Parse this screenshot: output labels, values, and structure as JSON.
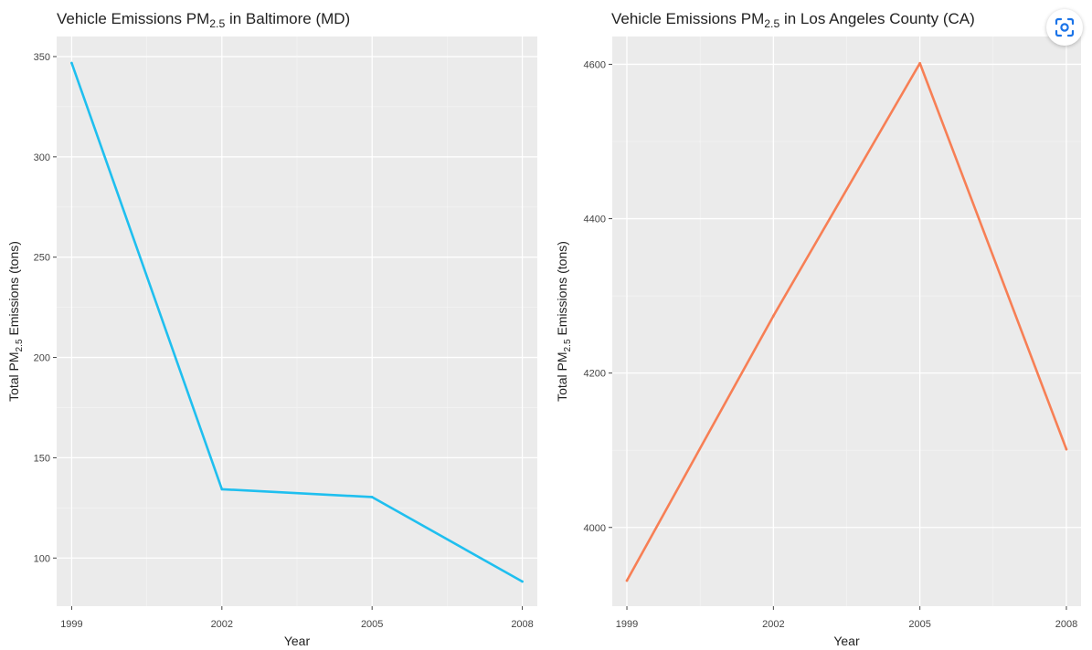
{
  "chart_data": [
    {
      "type": "line",
      "title": {
        "main": "Vehicle Emissions PM",
        "sub": "2.5",
        "rest": " in Baltimore (MD)"
      },
      "xlabel": "Year",
      "ylabel": {
        "main": "Total PM",
        "sub": "2.5",
        "rest": " Emissions (tons)"
      },
      "x": [
        1999,
        2002,
        2005,
        2008
      ],
      "y": [
        346.8,
        134.3,
        130.4,
        88.3
      ],
      "xticks": [
        1999,
        2002,
        2005,
        2008
      ],
      "yticks": [
        100,
        150,
        200,
        250,
        300,
        350
      ],
      "xlim": [
        1998.7,
        2008.3
      ],
      "ylim": [
        76,
        360
      ],
      "color": "#1fbfef",
      "grid": true,
      "legend": "none"
    },
    {
      "type": "line",
      "title": {
        "main": "Vehicle Emissions PM",
        "sub": "2.5",
        "rest": " in Los Angeles County (CA)"
      },
      "xlabel": "Year",
      "ylabel": {
        "main": "Total PM",
        "sub": "2.5",
        "rest": " Emissions (tons)"
      },
      "x": [
        1999,
        2002,
        2005,
        2008
      ],
      "y": [
        3931.1,
        4274.0,
        4601.4,
        4101.3
      ],
      "xticks": [
        1999,
        2002,
        2005,
        2008
      ],
      "yticks": [
        4000,
        4200,
        4400,
        4600
      ],
      "xlim": [
        1998.7,
        2008.3
      ],
      "ylim": [
        3898,
        4636
      ],
      "color": "#f77f55",
      "grid": true,
      "legend": "none"
    }
  ],
  "ui": {
    "lens_icon": "google-lens-icon",
    "accent": "#1a73e8"
  }
}
